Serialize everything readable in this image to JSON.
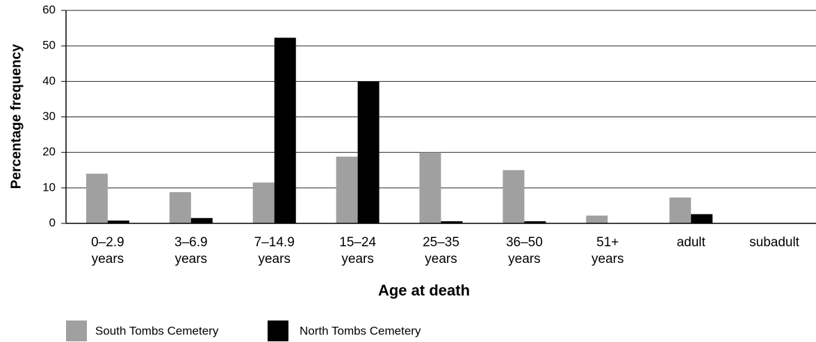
{
  "chart_data": {
    "type": "bar",
    "x_label": "Age at death",
    "y_label": "Percentage frequency",
    "categories": [
      "0–2.9 years",
      "3–6.9 years",
      "7–14.9 years",
      "15–24 years",
      "25–35 years",
      "36–50 years",
      "51+ years",
      "adult",
      "subadult"
    ],
    "series": [
      {
        "name": "South Tombs Cemetery",
        "color": "#a0a0a0",
        "values": [
          14,
          8.8,
          11.5,
          18.8,
          20,
          15,
          2.2,
          7.3,
          0
        ]
      },
      {
        "name": "North Tombs Cemetery",
        "color": "#000000",
        "values": [
          0.8,
          1.5,
          52.3,
          40,
          0.6,
          0.6,
          0,
          2.6,
          0
        ]
      }
    ],
    "ylim": [
      0,
      60
    ],
    "yticks": [
      0,
      10,
      20,
      30,
      40,
      50,
      60
    ],
    "grid": true
  }
}
